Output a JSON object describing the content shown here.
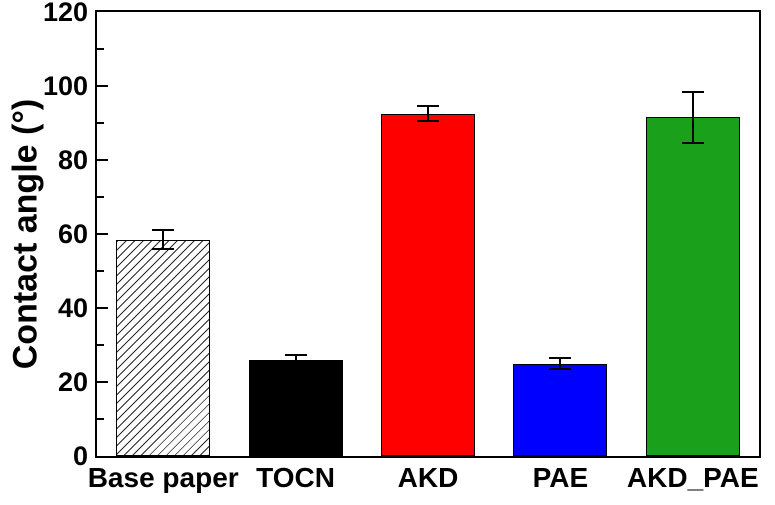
{
  "chart_data": {
    "type": "bar",
    "title": "",
    "categories": [
      "Base paper",
      "TOCN",
      "AKD",
      "PAE",
      "AKD_PAE"
    ],
    "values": [
      58.5,
      26,
      92.5,
      25,
      91.5
    ],
    "errors": [
      2.5,
      1.2,
      2,
      1.5,
      7
    ],
    "bar_colors": [
      "hatched-white",
      "#000000",
      "#ff0000",
      "#0000ff",
      "#1aa01a"
    ],
    "bar_patterns": [
      "diagonal-hatch",
      "solid",
      "solid",
      "solid",
      "solid"
    ],
    "bar_edge_color": "#000000",
    "error_bar_color": "#000000",
    "xlabel": "",
    "ylabel": "Contact angle (°)",
    "ylim": [
      0,
      120
    ],
    "yticks": [
      0,
      20,
      40,
      60,
      80,
      100,
      120
    ],
    "minor_tick_step": 10,
    "grid": false,
    "legend": "none",
    "axis_color": "#000000"
  }
}
